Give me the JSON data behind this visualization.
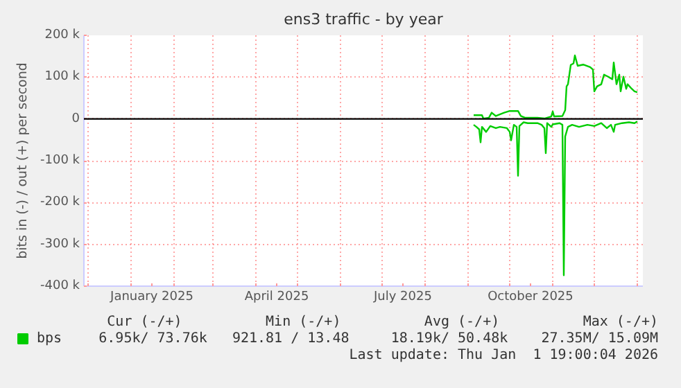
{
  "chart_data": {
    "type": "line",
    "title": "ens3 traffic - by year",
    "ylabel": "bits in (-) / out (+) per second",
    "x": [
      "2025-09-05",
      "2025-09-11",
      "2025-09-12",
      "2025-09-16",
      "2025-09-18",
      "2025-09-21",
      "2025-09-27",
      "2025-10-01",
      "2025-10-07",
      "2025-10-09",
      "2025-10-12",
      "2025-10-21",
      "2025-10-26",
      "2025-10-31",
      "2025-11-01",
      "2025-11-02",
      "2025-11-08",
      "2025-11-10",
      "2025-11-11",
      "2025-11-12",
      "2025-11-14",
      "2025-11-16",
      "2025-11-17",
      "2025-11-19",
      "2025-11-23",
      "2025-11-28",
      "2025-11-30",
      "2025-12-01",
      "2025-12-03",
      "2025-12-06",
      "2025-12-08",
      "2025-12-11",
      "2025-12-14",
      "2025-12-15",
      "2025-12-17",
      "2025-12-19",
      "2025-12-20",
      "2025-12-22",
      "2025-12-24",
      "2025-12-25",
      "2025-12-28",
      "2025-12-30",
      "2026-01-01"
    ],
    "series": [
      {
        "name": "bps",
        "color": "#00cc00",
        "values": [
          9000,
          9000,
          1000,
          3000,
          15000,
          7000,
          15000,
          19000,
          19000,
          7000,
          3000,
          3000,
          1000,
          6000,
          18000,
          6000,
          7000,
          21000,
          78000,
          83000,
          129000,
          133000,
          152000,
          127000,
          130000,
          124000,
          118000,
          66000,
          78000,
          83000,
          106000,
          101000,
          95000,
          135000,
          83000,
          106000,
          66000,
          101000,
          72000,
          83000,
          72000,
          66000,
          64000
        ]
      },
      {
        "color": "#00cc00",
        "x": [
          "2025-09-05",
          "2025-09-07",
          "2025-09-09",
          "2025-09-10",
          "2025-09-11",
          "2025-09-14",
          "2025-09-17",
          "2025-09-21",
          "2025-09-24",
          "2025-09-29",
          "2025-10-01",
          "2025-10-02",
          "2025-10-04",
          "2025-10-06",
          "2025-10-07",
          "2025-10-08",
          "2025-10-11",
          "2025-10-14",
          "2025-10-21",
          "2025-10-24",
          "2025-10-26",
          "2025-10-27",
          "2025-10-28",
          "2025-10-31",
          "2025-11-01",
          "2025-11-06",
          "2025-11-08",
          "2025-11-09",
          "2025-11-10",
          "2025-11-12",
          "2025-11-15",
          "2025-11-20",
          "2025-11-26",
          "2025-12-01",
          "2025-12-06",
          "2025-12-10",
          "2025-12-13",
          "2025-12-15",
          "2025-12-16",
          "2025-12-21",
          "2025-12-26",
          "2025-12-30",
          "2026-01-01"
        ],
        "values": [
          -14000,
          -19000,
          -25000,
          -56000,
          -19000,
          -31000,
          -17000,
          -22000,
          -19000,
          -22000,
          -31000,
          -51000,
          -14000,
          -19000,
          -136000,
          -17000,
          -8000,
          -10000,
          -10000,
          -14000,
          -22000,
          -82000,
          -10000,
          -19000,
          -13000,
          -10000,
          -14000,
          -374000,
          -42000,
          -19000,
          -14000,
          -19000,
          -14000,
          -17000,
          -10000,
          -22000,
          -14000,
          -31000,
          -14000,
          -10000,
          -8000,
          -10000,
          -6000
        ]
      }
    ],
    "xlim": [
      "2024-11-28",
      "2026-01-05"
    ],
    "xticks": [
      {
        "value": "2024-12-01",
        "label": null
      },
      {
        "value": "2025-01-01",
        "label": null
      },
      {
        "value": "2025-01-16",
        "label": "January 2025"
      },
      {
        "value": "2025-02-01",
        "label": null
      },
      {
        "value": "2025-03-01",
        "label": null
      },
      {
        "value": "2025-04-01",
        "label": null
      },
      {
        "value": "2025-04-16",
        "label": "April 2025"
      },
      {
        "value": "2025-05-01",
        "label": null
      },
      {
        "value": "2025-06-01",
        "label": null
      },
      {
        "value": "2025-07-01",
        "label": null
      },
      {
        "value": "2025-07-16",
        "label": "July 2025"
      },
      {
        "value": "2025-08-01",
        "label": null
      },
      {
        "value": "2025-09-01",
        "label": null
      },
      {
        "value": "2025-10-01",
        "label": null
      },
      {
        "value": "2025-10-16",
        "label": "October 2025"
      },
      {
        "value": "2025-11-01",
        "label": null
      },
      {
        "value": "2025-12-01",
        "label": null
      },
      {
        "value": "2026-01-01",
        "label": null
      }
    ],
    "ylim": [
      -400000,
      200000
    ],
    "yticks": [
      {
        "value": -400000,
        "label": "-400 k"
      },
      {
        "value": -300000,
        "label": "-300 k"
      },
      {
        "value": -200000,
        "label": "-200 k"
      },
      {
        "value": -100000,
        "label": "-100 k"
      },
      0,
      {
        "value": 100000,
        "label": "100 k"
      },
      {
        "value": 200000,
        "label": "200 k"
      }
    ],
    "ref_lines": [
      {
        "axis": "y",
        "value": 0,
        "color": "#000000"
      }
    ],
    "grid": true,
    "legend": "bottom",
    "annotations": [
      "Cur (-/+)          Min (-/+)          Avg (-/+)          Max (-/+)",
      "6.95k/ 73.76k   921.81 / 13.48     18.19k/ 50.48k    27.35M/ 15.09M",
      "Last update: Thu Jan  1 19:00:04 2026"
    ]
  }
}
